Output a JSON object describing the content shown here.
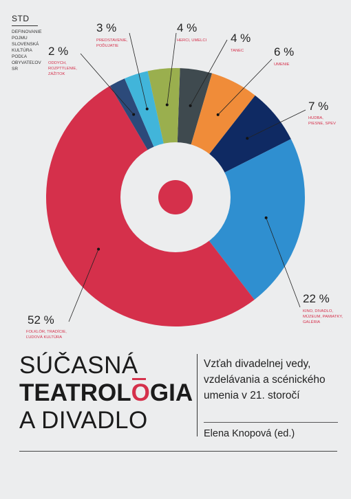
{
  "std": {
    "title": "STD",
    "description": "DEFINOVANIE POJMU SLOVENSKÁ KULTÚRA PODĽA OBYVATEĽOV SR"
  },
  "colors": {
    "red": "#d5304b",
    "blue": "#2f8fd0",
    "navy": "#0f2a63",
    "orange": "#f08c39",
    "dark_gray": "#3f4a4f",
    "olive": "#9aaf4e",
    "cyan": "#41b5da",
    "slate": "#2c4a7a",
    "center": "#d5304b"
  },
  "chart_data": {
    "type": "pie",
    "donut": true,
    "segments": [
      {
        "percent": "52 %",
        "value": 52,
        "label": "FOLKLÓR, TRADÍCIE, ĽUDOVÁ KULTÚRA",
        "color": "#d5304b"
      },
      {
        "percent": "22 %",
        "value": 22,
        "label": "KINO, DIVADLO, MÚZEUM, PAMIATKY, GALÉRIA",
        "color": "#2f8fd0"
      },
      {
        "percent": "7 %",
        "value": 7,
        "label": "HUDBA, PIESNE, SPEV",
        "color": "#0f2a63"
      },
      {
        "percent": "6 %",
        "value": 6,
        "label": "UMENIE",
        "color": "#f08c39"
      },
      {
        "percent": "4 %",
        "value": 4,
        "label": "TANEC",
        "color": "#3f4a4f"
      },
      {
        "percent": "4 %",
        "value": 4,
        "label": "HERCI, UMELCI",
        "color": "#9aaf4e"
      },
      {
        "percent": "3 %",
        "value": 3,
        "label": "PREDSTAVENIE, POĎUJATIE",
        "color": "#41b5da"
      },
      {
        "percent": "2 %",
        "value": 2,
        "label": "ODDYCH, ROZPTÝLENIE, ZÁŽITOK",
        "color": "#2c4a7a"
      }
    ]
  },
  "book": {
    "title_line1": "SÚČASNÁ",
    "title_line2_a": "TEATROL",
    "title_line2_b": "O",
    "title_line2_c": "GIA",
    "title_line3": "A DIVADLO",
    "subtitle": "Vzťah divadelnej vedy, vzdelávania a scénického umenia v 21. storočí",
    "author": "Elena Knopová (ed.)"
  }
}
